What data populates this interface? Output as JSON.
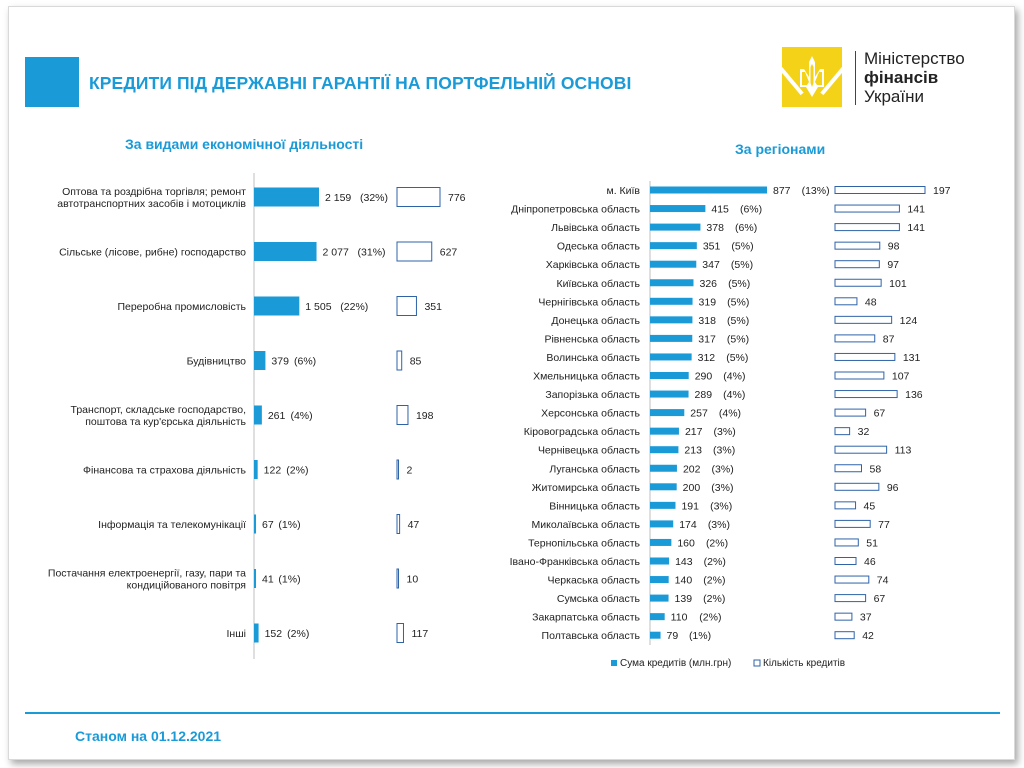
{
  "header": {
    "title": "КРЕДИТИ ПІД ДЕРЖАВНІ ГАРАНТІЇ НА ПОРТФЕЛЬНІЙ ОСНОВІ"
  },
  "logo": {
    "line1": "Міністерство",
    "line2": "фінансів",
    "line3": "України"
  },
  "colors": {
    "accent": "#1a9ad7",
    "amount_bar": "#1a9ad7",
    "count_bar_border": "#2e63a8",
    "emblem": "#f3d217"
  },
  "footer": {
    "date_text": "Станом на 01.12.2021"
  },
  "chart_data": [
    {
      "type": "bar",
      "orientation": "horizontal",
      "title": "За видами економічної діяльності",
      "categories": [
        [
          "Оптова та роздрібна торгівля; ремонт",
          "автотранспортних засобів і мотоциклів"
        ],
        [
          "Сільське (лісове, рибне) господарство"
        ],
        [
          "Переробна промисловість"
        ],
        [
          "Будівництво"
        ],
        [
          "Транспорт, складське господарство,",
          "поштова та кур'єрська діяльність"
        ],
        [
          "Фінансова та страхова діяльність"
        ],
        [
          "Інформація та телекомунікації"
        ],
        [
          "Постачання електроенергії, газу, пари та",
          "кондиційованого повітря"
        ],
        [
          "Інші"
        ]
      ],
      "series": [
        {
          "name": "Сума кредитів (млн.грн)",
          "values": [
            2159,
            2077,
            1505,
            379,
            261,
            122,
            67,
            41,
            152
          ],
          "labels": [
            "2 159",
            "2 077",
            "1 505",
            "379",
            "261",
            "122",
            "67",
            "41",
            "152"
          ],
          "shares": [
            "(32%)",
            "(31%)",
            "(22%)",
            "(6%)",
            "(4%)",
            "(2%)",
            "(1%)",
            "(1%)",
            "(2%)"
          ]
        },
        {
          "name": "Кількість кредитів",
          "values": [
            776,
            627,
            351,
            85,
            198,
            2,
            47,
            10,
            117
          ],
          "labels": [
            "776",
            "627",
            "351",
            "85",
            "198",
            "2",
            "47",
            "10",
            "117"
          ]
        }
      ]
    },
    {
      "type": "bar",
      "orientation": "horizontal",
      "title": "За регіонами",
      "categories": [
        "м. Київ",
        "Дніпропетровська область",
        "Львівська область",
        "Одеська область",
        "Харківська область",
        "Київська область",
        "Чернігівська область",
        "Донецька область",
        "Рівненська область",
        "Волинська область",
        "Хмельницька область",
        "Запорізька область",
        "Херсонська область",
        "Кіровоградська область",
        "Чернівецька область",
        "Луганська область",
        "Житомирська область",
        "Вінницька область",
        "Миколаївська область",
        "Тернопільська область",
        "Івано-Франківська область",
        "Черкаська область",
        "Сумська область",
        "Закарпатська область",
        "Полтавська область"
      ],
      "series": [
        {
          "name": "Сума кредитів (млн.грн)",
          "values": [
            877,
            415,
            378,
            351,
            347,
            326,
            319,
            318,
            317,
            312,
            290,
            289,
            257,
            217,
            213,
            202,
            200,
            191,
            174,
            160,
            143,
            140,
            139,
            110,
            79
          ],
          "labels": [
            "877",
            "415",
            "378",
            "351",
            "347",
            "326",
            "319",
            "318",
            "317",
            "312",
            "290",
            "289",
            "257",
            "217",
            "213",
            "202",
            "200",
            "191",
            "174",
            "160",
            "143",
            "140",
            "139",
            "110",
            "79"
          ],
          "shares": [
            "(13%)",
            "(6%)",
            "(6%)",
            "(5%)",
            "(5%)",
            "(5%)",
            "(5%)",
            "(5%)",
            "(5%)",
            "(5%)",
            "(4%)",
            "(4%)",
            "(4%)",
            "(3%)",
            "(3%)",
            "(3%)",
            "(3%)",
            "(3%)",
            "(3%)",
            "(2%)",
            "(2%)",
            "(2%)",
            "(2%)",
            "(2%)",
            "(1%)"
          ]
        },
        {
          "name": "Кількість кредитів",
          "values": [
            197,
            141,
            141,
            98,
            97,
            101,
            48,
            124,
            87,
            131,
            107,
            136,
            67,
            32,
            113,
            58,
            96,
            45,
            77,
            51,
            46,
            74,
            67,
            37,
            42
          ],
          "labels": [
            "197",
            "141",
            "141",
            "98",
            "97",
            "101",
            "48",
            "124",
            "87",
            "131",
            "107",
            "136",
            "67",
            "32",
            "113",
            "58",
            "96",
            "45",
            "77",
            "51",
            "46",
            "74",
            "67",
            "37",
            "42"
          ]
        }
      ],
      "legend": {
        "position": "bottom",
        "items": [
          "Сума кредитів (млн.грн)",
          "Кількість кредитів"
        ]
      }
    }
  ]
}
